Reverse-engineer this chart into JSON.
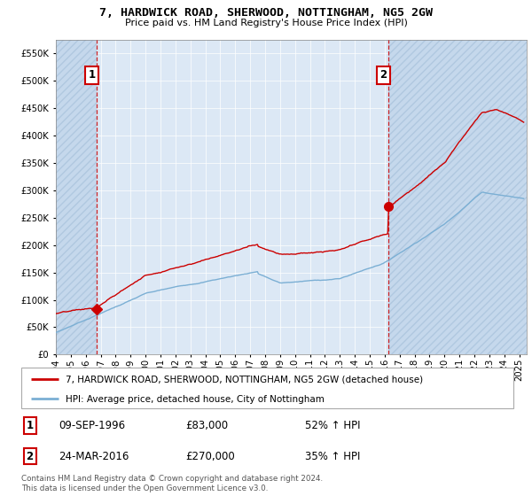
{
  "title": "7, HARDWICK ROAD, SHERWOOD, NOTTINGHAM, NG5 2GW",
  "subtitle": "Price paid vs. HM Land Registry's House Price Index (HPI)",
  "sale1_date": 1996.7,
  "sale1_price": 83000,
  "sale2_date": 2016.23,
  "sale2_price": 270000,
  "legend_line1": "7, HARDWICK ROAD, SHERWOOD, NOTTINGHAM, NG5 2GW (detached house)",
  "legend_line2": "HPI: Average price, detached house, City of Nottingham",
  "footer": "Contains HM Land Registry data © Crown copyright and database right 2024.\nThis data is licensed under the Open Government Licence v3.0.",
  "hpi_color": "#7bafd4",
  "price_color": "#cc0000",
  "bg_color": "#dce8f5",
  "hatch_color": "#c5d8ec",
  "ylim_max": 575000,
  "ylim_min": 0,
  "xmin": 1994.0,
  "xmax": 2025.5
}
